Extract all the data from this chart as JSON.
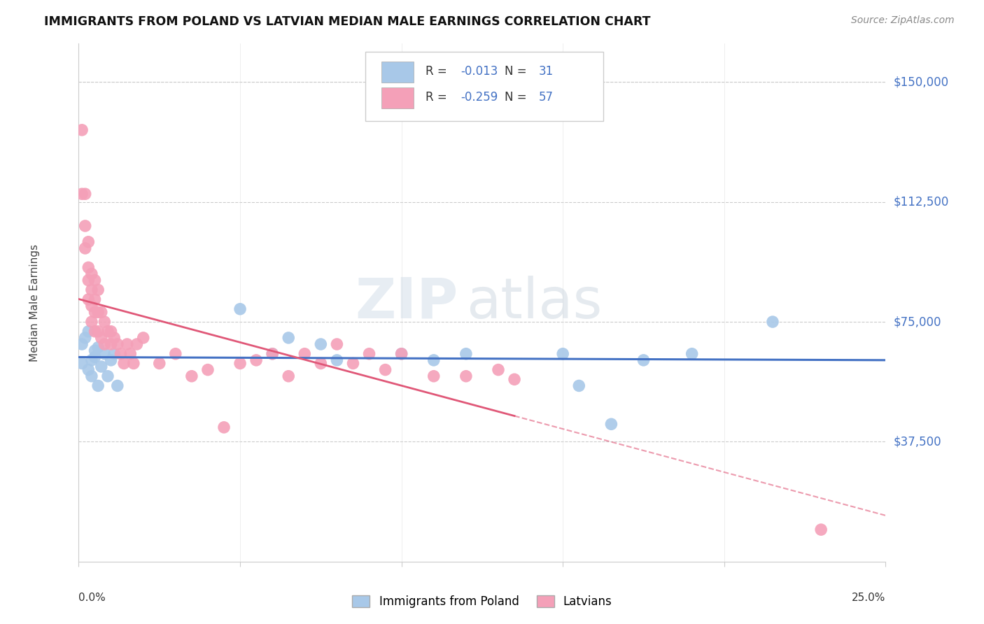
{
  "title": "IMMIGRANTS FROM POLAND VS LATVIAN MEDIAN MALE EARNINGS CORRELATION CHART",
  "source": "Source: ZipAtlas.com",
  "ylabel": "Median Male Earnings",
  "ytick_labels": [
    "$37,500",
    "$75,000",
    "$112,500",
    "$150,000"
  ],
  "ytick_values": [
    37500,
    75000,
    112500,
    150000
  ],
  "y_min": 0,
  "y_max": 162000,
  "x_min": 0.0,
  "x_max": 0.25,
  "color_blue": "#a8c8e8",
  "color_pink": "#f4a0b8",
  "color_blue_line": "#4472c4",
  "color_pink_line": "#e05878",
  "color_blue_text": "#4472c4",
  "watermark_zip": "ZIP",
  "watermark_atlas": "atlas",
  "poland_x": [
    0.001,
    0.001,
    0.002,
    0.003,
    0.003,
    0.004,
    0.004,
    0.005,
    0.005,
    0.006,
    0.006,
    0.007,
    0.008,
    0.009,
    0.01,
    0.011,
    0.012,
    0.05,
    0.06,
    0.065,
    0.075,
    0.08,
    0.1,
    0.11,
    0.12,
    0.15,
    0.155,
    0.165,
    0.175,
    0.19,
    0.215
  ],
  "poland_y": [
    68000,
    62000,
    70000,
    72000,
    60000,
    63000,
    58000,
    64000,
    66000,
    67000,
    55000,
    61000,
    65000,
    58000,
    63000,
    65000,
    55000,
    79000,
    65000,
    70000,
    68000,
    63000,
    65000,
    63000,
    65000,
    65000,
    55000,
    43000,
    63000,
    65000,
    75000
  ],
  "latvian_x": [
    0.001,
    0.001,
    0.002,
    0.002,
    0.002,
    0.003,
    0.003,
    0.003,
    0.003,
    0.004,
    0.004,
    0.004,
    0.004,
    0.005,
    0.005,
    0.005,
    0.005,
    0.006,
    0.006,
    0.006,
    0.007,
    0.007,
    0.008,
    0.008,
    0.009,
    0.01,
    0.01,
    0.011,
    0.012,
    0.013,
    0.014,
    0.015,
    0.016,
    0.017,
    0.018,
    0.02,
    0.025,
    0.03,
    0.035,
    0.04,
    0.045,
    0.05,
    0.055,
    0.06,
    0.065,
    0.07,
    0.075,
    0.08,
    0.085,
    0.09,
    0.095,
    0.1,
    0.11,
    0.12,
    0.13,
    0.135,
    0.23
  ],
  "latvian_y": [
    135000,
    115000,
    115000,
    105000,
    98000,
    100000,
    92000,
    88000,
    82000,
    90000,
    85000,
    80000,
    75000,
    88000,
    82000,
    78000,
    72000,
    85000,
    78000,
    72000,
    78000,
    70000,
    75000,
    68000,
    72000,
    72000,
    68000,
    70000,
    68000,
    65000,
    62000,
    68000,
    65000,
    62000,
    68000,
    70000,
    62000,
    65000,
    58000,
    60000,
    42000,
    62000,
    63000,
    65000,
    58000,
    65000,
    62000,
    68000,
    62000,
    65000,
    60000,
    65000,
    58000,
    58000,
    60000,
    57000,
    10000
  ]
}
